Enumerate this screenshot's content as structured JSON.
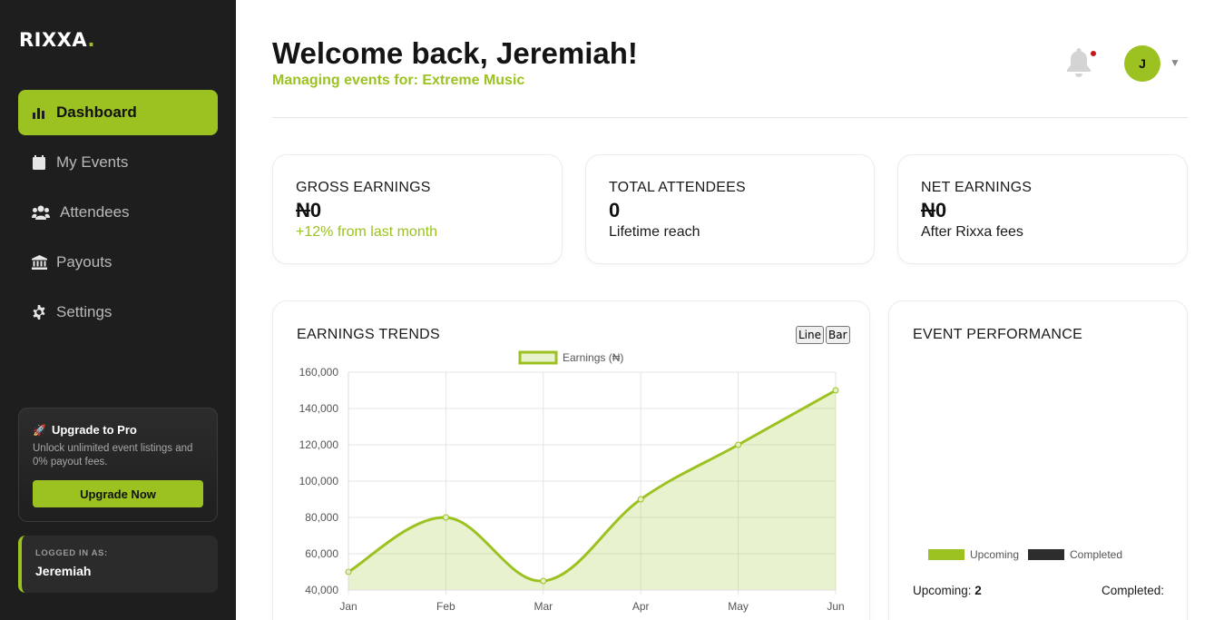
{
  "app": {
    "logo_text": "RIXXA",
    "logo_dot": ".",
    "accent_color": "#9bc220"
  },
  "sidebar": {
    "items": [
      {
        "label": "Dashboard",
        "icon": "bar-chart-icon",
        "active": true
      },
      {
        "label": "My Events",
        "icon": "calendar-icon",
        "active": false
      },
      {
        "label": "Attendees",
        "icon": "users-icon",
        "active": false
      },
      {
        "label": "Payouts",
        "icon": "bank-icon",
        "active": false
      },
      {
        "label": "Settings",
        "icon": "gear-icon",
        "active": false
      }
    ],
    "upgrade": {
      "emoji": "🚀",
      "title": "Upgrade to Pro",
      "text": "Unlock unlimited event listings and 0% payout fees.",
      "button": "Upgrade Now"
    },
    "logged_in": {
      "caption": "LOGGED IN AS:",
      "name": "Jeremiah"
    }
  },
  "header": {
    "title": "Welcome back, Jeremiah!",
    "subtitle": "Managing events for: Extreme Music",
    "avatar_initial": "J",
    "caret": "▼"
  },
  "stats": [
    {
      "label": "GROSS EARNINGS",
      "currency": "N",
      "value": "0",
      "sub": "+12% from last month",
      "sub_green": true
    },
    {
      "label": "TOTAL ATTENDEES",
      "currency": "",
      "value": "0",
      "sub": "Lifetime reach",
      "sub_green": false
    },
    {
      "label": "NET EARNINGS",
      "currency": "N",
      "value": "0",
      "sub": "After Rixxa fees",
      "sub_green": false
    }
  ],
  "earnings_card": {
    "title": "EARNINGS TRENDS",
    "toggle_line": "Line",
    "toggle_bar": "Bar"
  },
  "chart_data": {
    "type": "area",
    "categories": [
      "Jan",
      "Feb",
      "Mar",
      "Apr",
      "May",
      "Jun"
    ],
    "series": [
      {
        "name": "Earnings (₦)",
        "values": [
          50000,
          80000,
          45000,
          90000,
          120000,
          150000
        ],
        "color": "#9bc220"
      }
    ],
    "y_ticks": [
      "40,000",
      "60,000",
      "80,000",
      "100,000",
      "120,000",
      "140,000",
      "160,000"
    ],
    "ylim": [
      40000,
      160000
    ],
    "legend_position": "top",
    "grid": true
  },
  "performance_card": {
    "title": "EVENT PERFORMANCE",
    "legend": [
      {
        "label": "Upcoming",
        "color": "#9bc220"
      },
      {
        "label": "Completed",
        "color": "#2d2d2d"
      }
    ],
    "upcoming_label": "Upcoming:",
    "upcoming_value": "2",
    "completed_label": "Completed:"
  }
}
